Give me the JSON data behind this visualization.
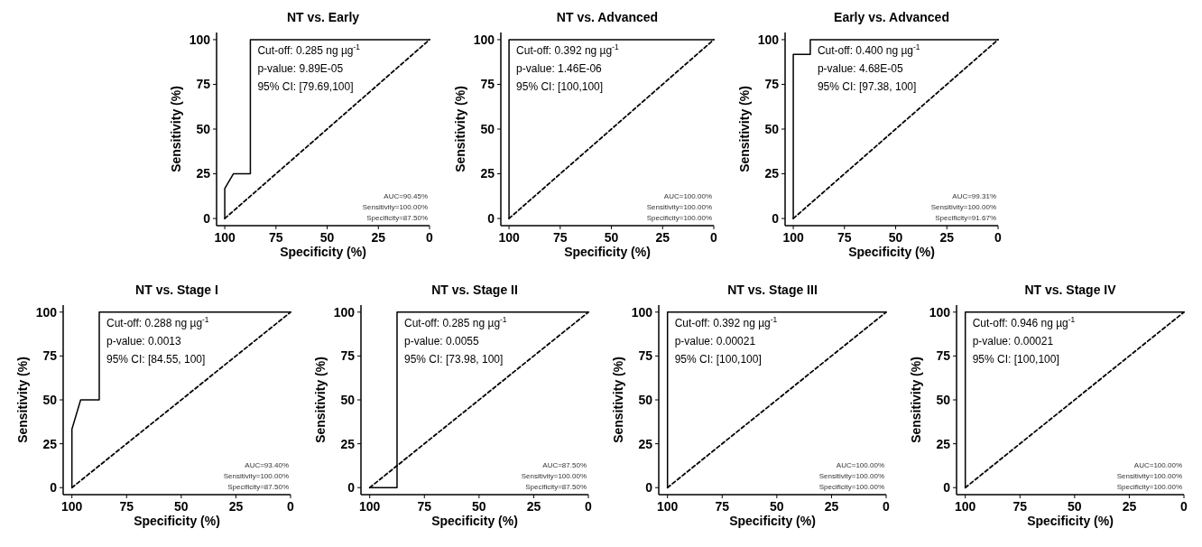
{
  "chart_data": [
    {
      "type": "line",
      "title": "NT vs. Early",
      "xlabel": "Specificity (%)",
      "ylabel": "Sensitivity (%)",
      "xlim": [
        104,
        0
      ],
      "ylim": [
        -4,
        104
      ],
      "xticks": [
        100,
        75,
        50,
        25,
        0
      ],
      "yticks": [
        0,
        25,
        50,
        75,
        100
      ],
      "grid": false,
      "marker": "none",
      "series": [
        {
          "color": "#000000",
          "line_style": "solid",
          "x": [
            100,
            100,
            95.8,
            87.5,
            87.5,
            0
          ],
          "values": [
            0,
            16.7,
            25,
            25,
            100,
            100
          ]
        },
        {
          "color": "#000000",
          "line_style": "dashed",
          "x": [
            100,
            0
          ],
          "values": [
            0,
            100
          ]
        }
      ],
      "annotations": [
        "Cut-off: 0.285 ng µg$^{-1}$",
        "p-value: 9.89E-05",
        "95% CI: [79.69,100]",
        "AUC=90.45%",
        "Sensitivity=100.00%",
        "Specificity=87.50%"
      ]
    },
    {
      "type": "line",
      "title": "NT vs. Advanced",
      "xlabel": "Specificity (%)",
      "ylabel": "Sensitivity (%)",
      "xlim": [
        104,
        0
      ],
      "ylim": [
        -4,
        104
      ],
      "xticks": [
        100,
        75,
        50,
        25,
        0
      ],
      "yticks": [
        0,
        25,
        50,
        75,
        100
      ],
      "grid": false,
      "marker": "none",
      "series": [
        {
          "color": "#000000",
          "line_style": "solid",
          "x": [
            100,
            100,
            0
          ],
          "values": [
            0,
            100,
            100
          ]
        },
        {
          "color": "#000000",
          "line_style": "dashed",
          "x": [
            100,
            0
          ],
          "values": [
            0,
            100
          ]
        }
      ],
      "annotations": [
        "Cut-off: 0.392 ng µg$^{-1}$",
        "p-value: 1.46E-06",
        "95% CI: [100,100]",
        "AUC=100.00%",
        "Sensitivity=100.00%",
        "Specificity=100.00%"
      ]
    },
    {
      "type": "line",
      "title": "Early vs. Advanced",
      "xlabel": "Specificity (%)",
      "ylabel": "Sensitivity (%)",
      "xlim": [
        104,
        0
      ],
      "ylim": [
        -4,
        104
      ],
      "xticks": [
        100,
        75,
        50,
        25,
        0
      ],
      "yticks": [
        0,
        25,
        50,
        75,
        100
      ],
      "grid": false,
      "marker": "none",
      "series": [
        {
          "color": "#000000",
          "line_style": "solid",
          "x": [
            100,
            100,
            91.7,
            91.7,
            0
          ],
          "values": [
            0,
            91.7,
            91.7,
            100,
            100
          ]
        },
        {
          "color": "#000000",
          "line_style": "dashed",
          "x": [
            100,
            0
          ],
          "values": [
            0,
            100
          ]
        }
      ],
      "annotations": [
        "Cut-off: 0.400 ng µg$^{-1}$",
        "p-value: 4.68E-05",
        "95% CI: [97.38, 100]",
        "AUC=99.31%",
        "Sensitivity=100.00%",
        "Specificity=91.67%"
      ]
    },
    {
      "type": "line",
      "title": "NT vs. Stage I",
      "xlabel": "Specificity (%)",
      "ylabel": "Sensitivity (%)",
      "xlim": [
        104,
        0
      ],
      "ylim": [
        -4,
        104
      ],
      "xticks": [
        100,
        75,
        50,
        25,
        0
      ],
      "yticks": [
        0,
        25,
        50,
        75,
        100
      ],
      "grid": false,
      "marker": "none",
      "series": [
        {
          "color": "#000000",
          "line_style": "solid",
          "x": [
            100,
            100,
            96,
            87.5,
            87.5,
            0
          ],
          "values": [
            0,
            33.3,
            50,
            50,
            100,
            100
          ]
        },
        {
          "color": "#000000",
          "line_style": "dashed",
          "x": [
            100,
            0
          ],
          "values": [
            0,
            100
          ]
        }
      ],
      "annotations": [
        "Cut-off: 0.288 ng µg$^{-1}$",
        "p-value: 0.0013",
        "95% CI: [84.55, 100]",
        "AUC=93.40%",
        "Sensitivity=100.00%",
        "Specificity=87.50%"
      ]
    },
    {
      "type": "line",
      "title": "NT vs. Stage II",
      "xlabel": "Specificity (%)",
      "ylabel": "Sensitivity (%)",
      "xlim": [
        104,
        0
      ],
      "ylim": [
        -4,
        104
      ],
      "xticks": [
        100,
        75,
        50,
        25,
        0
      ],
      "yticks": [
        0,
        25,
        50,
        75,
        100
      ],
      "grid": false,
      "marker": "none",
      "series": [
        {
          "color": "#000000",
          "line_style": "solid",
          "x": [
            100,
            87.5,
            87.5,
            0
          ],
          "values": [
            0,
            0,
            100,
            100
          ]
        },
        {
          "color": "#000000",
          "line_style": "dashed",
          "x": [
            100,
            0
          ],
          "values": [
            0,
            100
          ]
        }
      ],
      "annotations": [
        "Cut-off: 0.285 ng µg$^{-1}$",
        "p-value: 0.0055",
        "95% CI: [73.98, 100]",
        "AUC=87.50%",
        "Sensitivity=100.00%",
        "Specificity=87.50%"
      ]
    },
    {
      "type": "line",
      "title": "NT vs. Stage III",
      "xlabel": "Specificity (%)",
      "ylabel": "Sensitivity (%)",
      "xlim": [
        104,
        0
      ],
      "ylim": [
        -4,
        104
      ],
      "xticks": [
        100,
        75,
        50,
        25,
        0
      ],
      "yticks": [
        0,
        25,
        50,
        75,
        100
      ],
      "grid": false,
      "marker": "none",
      "series": [
        {
          "color": "#000000",
          "line_style": "solid",
          "x": [
            100,
            100,
            0
          ],
          "values": [
            0,
            100,
            100
          ]
        },
        {
          "color": "#000000",
          "line_style": "dashed",
          "x": [
            100,
            0
          ],
          "values": [
            0,
            100
          ]
        }
      ],
      "annotations": [
        "Cut-off: 0.392 ng µg$^{-1}$",
        "p-value: 0.00021",
        "95% CI: [100,100]",
        "AUC=100.00%",
        "Sensitivity=100.00%",
        "Specificity=100.00%"
      ]
    },
    {
      "type": "line",
      "title": "NT vs. Stage IV",
      "xlabel": "Specificity (%)",
      "ylabel": "Sensitivity (%)",
      "xlim": [
        104,
        0
      ],
      "ylim": [
        -4,
        104
      ],
      "xticks": [
        100,
        75,
        50,
        25,
        0
      ],
      "yticks": [
        0,
        25,
        50,
        75,
        100
      ],
      "grid": false,
      "marker": "none",
      "series": [
        {
          "color": "#000000",
          "line_style": "solid",
          "x": [
            100,
            100,
            0
          ],
          "values": [
            0,
            100,
            100
          ]
        },
        {
          "color": "#000000",
          "line_style": "dashed",
          "x": [
            100,
            0
          ],
          "values": [
            0,
            100
          ]
        }
      ],
      "annotations": [
        "Cut-off: 0.946 ng µg$^{-1}$",
        "p-value: 0.00021",
        "95% CI: [100,100]",
        "AUC=100.00%",
        "Sensitivity=100.00%",
        "Specificity=100.00%"
      ]
    }
  ]
}
